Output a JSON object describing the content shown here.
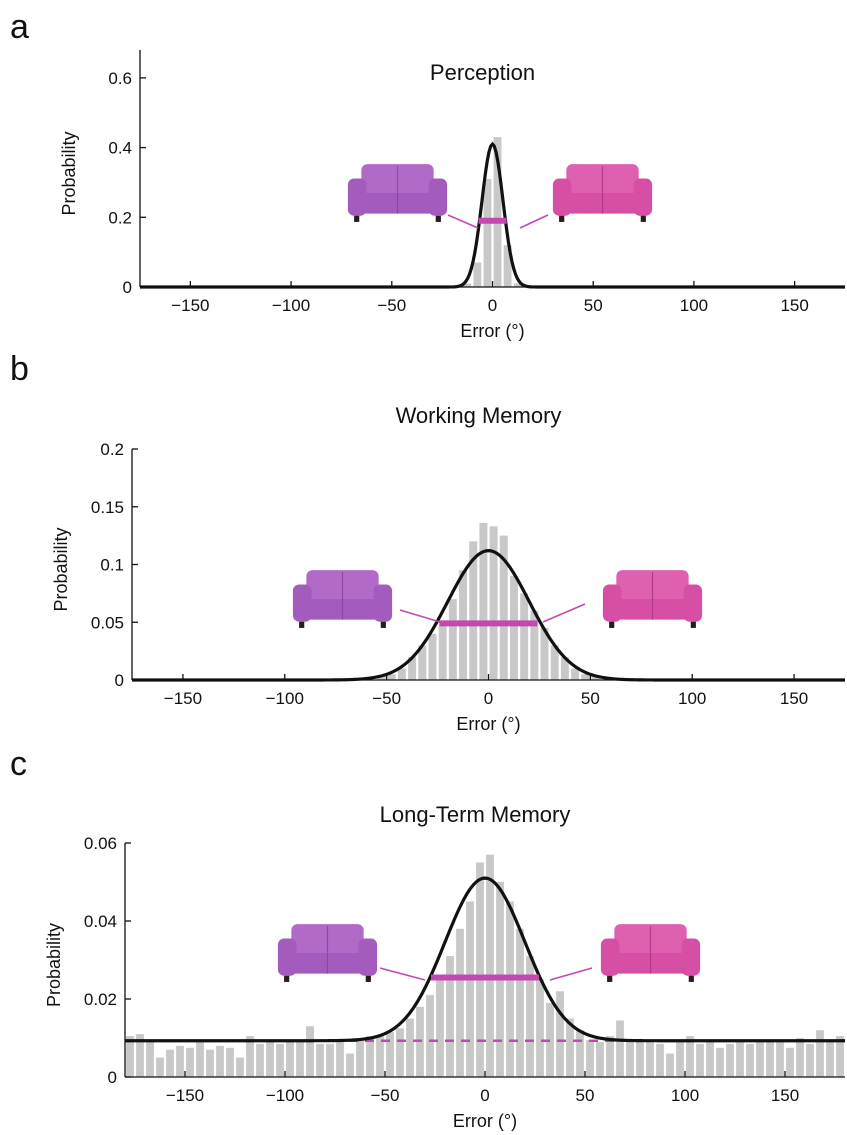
{
  "chart_data": [
    {
      "panel": "a",
      "type": "bar",
      "title": "Perception",
      "xlabel": "Error (°)",
      "ylabel": "Probability",
      "xlim": [
        -175,
        175
      ],
      "ylim": [
        0,
        0.68
      ],
      "xticks": [
        -150,
        -100,
        -50,
        0,
        50,
        100,
        150
      ],
      "yticks": [
        0,
        0.2,
        0.4,
        0.6
      ],
      "ytick_labels": [
        "0",
        "0.2",
        "0.4",
        "0.6"
      ],
      "bin_width": 5,
      "bars": [
        {
          "x": -12.5,
          "y": 0.01
        },
        {
          "x": -7.5,
          "y": 0.07
        },
        {
          "x": -2.5,
          "y": 0.31
        },
        {
          "x": 2.5,
          "y": 0.43
        },
        {
          "x": 7.5,
          "y": 0.12
        },
        {
          "x": 12.5,
          "y": 0.01
        }
      ],
      "fit": {
        "baseline": 0,
        "peak": 0.41,
        "sigma": 5.2
      },
      "halfwidth": {
        "x1": -7,
        "x2": 7,
        "y": 0.19
      },
      "colors": {
        "bars": "#c8c8c8",
        "fit": "#111111",
        "halfwidth": "#c548b0"
      },
      "images": [
        "sofa-purple-icon",
        "sofa-pink-icon"
      ]
    },
    {
      "panel": "b",
      "type": "bar",
      "title": "Working Memory",
      "xlabel": "Error (°)",
      "ylabel": "Probability",
      "xlim": [
        -175,
        175
      ],
      "ylim": [
        0,
        0.2
      ],
      "xticks": [
        -150,
        -100,
        -50,
        0,
        50,
        100,
        150
      ],
      "yticks": [
        0,
        0.05,
        0.1,
        0.15,
        0.2
      ],
      "ytick_labels": [
        "0",
        "0.05",
        "0.1",
        "0.15",
        "0.2"
      ],
      "bin_width": 5,
      "bars": [
        {
          "x": -52.5,
          "y": 0.003
        },
        {
          "x": -47.5,
          "y": 0.005
        },
        {
          "x": -42.5,
          "y": 0.01
        },
        {
          "x": -37.5,
          "y": 0.02
        },
        {
          "x": -32.5,
          "y": 0.03
        },
        {
          "x": -27.5,
          "y": 0.04
        },
        {
          "x": -22.5,
          "y": 0.05
        },
        {
          "x": -17.5,
          "y": 0.07
        },
        {
          "x": -12.5,
          "y": 0.095
        },
        {
          "x": -7.5,
          "y": 0.12
        },
        {
          "x": -2.5,
          "y": 0.136
        },
        {
          "x": 2.5,
          "y": 0.133
        },
        {
          "x": 7.5,
          "y": 0.125
        },
        {
          "x": 12.5,
          "y": 0.09
        },
        {
          "x": 17.5,
          "y": 0.075
        },
        {
          "x": 22.5,
          "y": 0.06
        },
        {
          "x": 27.5,
          "y": 0.045
        },
        {
          "x": 32.5,
          "y": 0.03
        },
        {
          "x": 37.5,
          "y": 0.02
        },
        {
          "x": 42.5,
          "y": 0.01
        },
        {
          "x": 47.5,
          "y": 0.005
        },
        {
          "x": 52.5,
          "y": 0.003
        }
      ],
      "fit": {
        "baseline": 0,
        "peak": 0.112,
        "sigma": 20
      },
      "halfwidth": {
        "x1": -24,
        "x2": 24,
        "y": 0.049
      },
      "colors": {
        "bars": "#c8c8c8",
        "fit": "#111111",
        "halfwidth": "#c548b0"
      },
      "images": [
        "sofa-purple-icon",
        "sofa-pink-icon"
      ]
    },
    {
      "panel": "c",
      "type": "bar",
      "title": "Long-Term Memory",
      "xlabel": "Error (°)",
      "ylabel": "Probability",
      "xlim": [
        -180,
        180
      ],
      "ylim": [
        0,
        0.06
      ],
      "xticks": [
        -150,
        -100,
        -50,
        0,
        50,
        100,
        150
      ],
      "yticks": [
        0,
        0.02,
        0.04,
        0.06
      ],
      "ytick_labels": [
        "0",
        "0.02",
        "0.04",
        "0.06"
      ],
      "bin_width": 5,
      "bars": [
        {
          "x": -177.5,
          "y": 0.0105
        },
        {
          "x": -172.5,
          "y": 0.011
        },
        {
          "x": -167.5,
          "y": 0.009
        },
        {
          "x": -162.5,
          "y": 0.005
        },
        {
          "x": -157.5,
          "y": 0.007
        },
        {
          "x": -152.5,
          "y": 0.008
        },
        {
          "x": -147.5,
          "y": 0.0075
        },
        {
          "x": -142.5,
          "y": 0.009
        },
        {
          "x": -137.5,
          "y": 0.007
        },
        {
          "x": -132.5,
          "y": 0.008
        },
        {
          "x": -127.5,
          "y": 0.0075
        },
        {
          "x": -122.5,
          "y": 0.005
        },
        {
          "x": -117.5,
          "y": 0.0105
        },
        {
          "x": -112.5,
          "y": 0.0085
        },
        {
          "x": -107.5,
          "y": 0.0095
        },
        {
          "x": -102.5,
          "y": 0.0085
        },
        {
          "x": -97.5,
          "y": 0.009
        },
        {
          "x": -92.5,
          "y": 0.0095
        },
        {
          "x": -87.5,
          "y": 0.013
        },
        {
          "x": -82.5,
          "y": 0.0085
        },
        {
          "x": -77.5,
          "y": 0.0085
        },
        {
          "x": -72.5,
          "y": 0.009
        },
        {
          "x": -67.5,
          "y": 0.006
        },
        {
          "x": -62.5,
          "y": 0.0095
        },
        {
          "x": -57.5,
          "y": 0.0105
        },
        {
          "x": -52.5,
          "y": 0.0105
        },
        {
          "x": -47.5,
          "y": 0.0115
        },
        {
          "x": -42.5,
          "y": 0.0125
        },
        {
          "x": -37.5,
          "y": 0.015
        },
        {
          "x": -32.5,
          "y": 0.018
        },
        {
          "x": -27.5,
          "y": 0.021
        },
        {
          "x": -22.5,
          "y": 0.026
        },
        {
          "x": -17.5,
          "y": 0.031
        },
        {
          "x": -12.5,
          "y": 0.038
        },
        {
          "x": -7.5,
          "y": 0.045
        },
        {
          "x": -2.5,
          "y": 0.055
        },
        {
          "x": 2.5,
          "y": 0.057
        },
        {
          "x": 7.5,
          "y": 0.05
        },
        {
          "x": 12.5,
          "y": 0.045
        },
        {
          "x": 17.5,
          "y": 0.038
        },
        {
          "x": 22.5,
          "y": 0.031
        },
        {
          "x": 27.5,
          "y": 0.025
        },
        {
          "x": 32.5,
          "y": 0.019
        },
        {
          "x": 37.5,
          "y": 0.022
        },
        {
          "x": 42.5,
          "y": 0.015
        },
        {
          "x": 47.5,
          "y": 0.012
        },
        {
          "x": 52.5,
          "y": 0.0095
        },
        {
          "x": 57.5,
          "y": 0.009
        },
        {
          "x": 62.5,
          "y": 0.0105
        },
        {
          "x": 67.5,
          "y": 0.0145
        },
        {
          "x": 72.5,
          "y": 0.0095
        },
        {
          "x": 77.5,
          "y": 0.009
        },
        {
          "x": 82.5,
          "y": 0.0095
        },
        {
          "x": 87.5,
          "y": 0.0085
        },
        {
          "x": 92.5,
          "y": 0.006
        },
        {
          "x": 97.5,
          "y": 0.0095
        },
        {
          "x": 102.5,
          "y": 0.0105
        },
        {
          "x": 107.5,
          "y": 0.0085
        },
        {
          "x": 112.5,
          "y": 0.0095
        },
        {
          "x": 117.5,
          "y": 0.0075
        },
        {
          "x": 122.5,
          "y": 0.0085
        },
        {
          "x": 127.5,
          "y": 0.009
        },
        {
          "x": 132.5,
          "y": 0.0085
        },
        {
          "x": 137.5,
          "y": 0.009
        },
        {
          "x": 142.5,
          "y": 0.0095
        },
        {
          "x": 147.5,
          "y": 0.0095
        },
        {
          "x": 152.5,
          "y": 0.0075
        },
        {
          "x": 157.5,
          "y": 0.01
        },
        {
          "x": 162.5,
          "y": 0.0085
        },
        {
          "x": 167.5,
          "y": 0.012
        },
        {
          "x": 172.5,
          "y": 0.0095
        },
        {
          "x": 177.5,
          "y": 0.0105
        }
      ],
      "fit": {
        "baseline": 0.0093,
        "peak": 0.051,
        "sigma": 20
      },
      "halfwidth": {
        "x1": -27,
        "x2": 27,
        "y": 0.0255
      },
      "baseline_line": {
        "y": 0.0093
      },
      "colors": {
        "bars": "#c8c8c8",
        "fit": "#111111",
        "halfwidth": "#c548b0"
      },
      "images": [
        "sofa-purple-icon",
        "sofa-pink-icon"
      ]
    }
  ]
}
